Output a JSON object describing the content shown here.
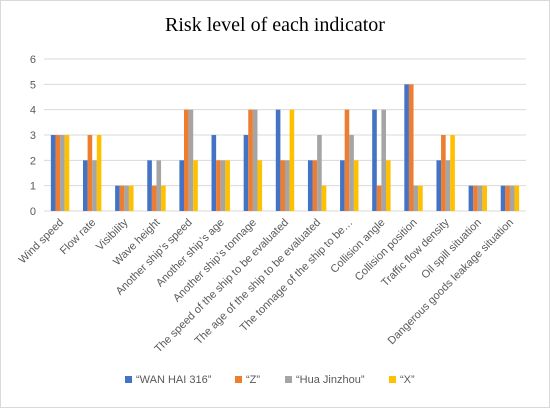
{
  "chart_data": {
    "type": "bar",
    "title": "Risk level of each indicator",
    "xlabel": "",
    "ylabel": "",
    "ylim": [
      0,
      6
    ],
    "yticks": [
      0,
      1,
      2,
      3,
      4,
      5,
      6
    ],
    "grid": true,
    "legend_position": "bottom",
    "categories": [
      "Wind speed",
      "Flow rate",
      "Visibility",
      "Wave height",
      "Another ship’s speed",
      "Another ship’s age",
      "Another ship’s tonnage",
      "The speed of the ship to be evaluated",
      "The age of the ship to be evaluated",
      "The tonnage of the ship to be…",
      "Collision angle",
      "Collision position",
      "Traffic flow density",
      "Oil spill situation",
      "Dangerous goods leakage situation"
    ],
    "series": [
      {
        "name": "“WAN HAI 316”",
        "color": "#4472c4",
        "values": [
          3,
          2,
          1,
          2,
          2,
          3,
          3,
          4,
          2,
          2,
          4,
          5,
          2,
          1,
          1
        ]
      },
      {
        "name": "“Z”",
        "color": "#ed7d31",
        "values": [
          3,
          3,
          1,
          1,
          4,
          2,
          4,
          2,
          2,
          4,
          1,
          5,
          3,
          1,
          1
        ]
      },
      {
        "name": "“Hua Jinzhou”",
        "color": "#a5a5a5",
        "values": [
          3,
          2,
          1,
          2,
          4,
          2,
          4,
          2,
          3,
          3,
          4,
          1,
          2,
          1,
          1
        ]
      },
      {
        "name": "“X”",
        "color": "#ffc000",
        "values": [
          3,
          3,
          1,
          1,
          2,
          2,
          2,
          4,
          1,
          2,
          2,
          1,
          3,
          1,
          1
        ]
      }
    ]
  }
}
